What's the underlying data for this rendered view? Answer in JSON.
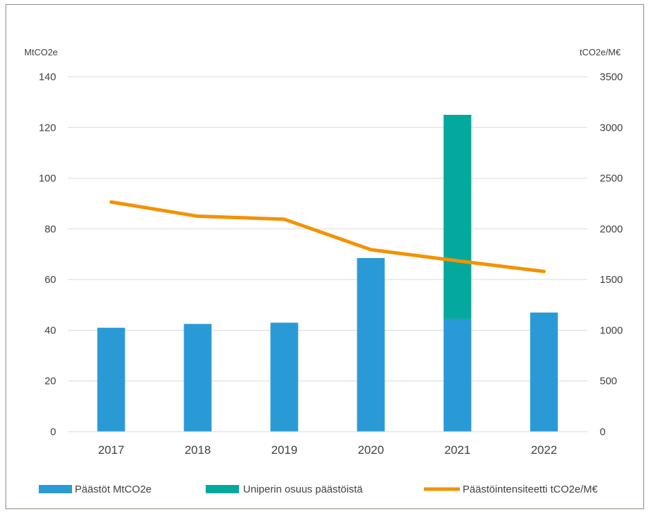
{
  "chart_data": {
    "type": "bar",
    "categories": [
      "2017",
      "2018",
      "2019",
      "2020",
      "2021",
      "2022"
    ],
    "left_axis": {
      "unit_label": "MtCO2e",
      "ylim": [
        0,
        140
      ],
      "ticks": [
        0,
        20,
        40,
        60,
        80,
        100,
        120,
        140
      ]
    },
    "right_axis": {
      "unit_label": "tCO2e/M€",
      "ylim": [
        0,
        3500
      ],
      "ticks": [
        0,
        500,
        1000,
        1500,
        2000,
        2500,
        3000,
        3500
      ]
    },
    "series": [
      {
        "name": "Päästöt MtCO2e",
        "type": "bar",
        "axis": "left",
        "stack": "a",
        "color": "#2a9ad6",
        "values": [
          41,
          42.5,
          43,
          68.5,
          44.5,
          47
        ]
      },
      {
        "name": "Uniperin osuus päästöistä",
        "type": "bar",
        "axis": "left",
        "stack": "a",
        "color": "#05a89d",
        "values": [
          0,
          0,
          0,
          0,
          80.5,
          0
        ]
      },
      {
        "name": "Päästöintensiteetti tCO2e/M€",
        "type": "line",
        "axis": "right",
        "color": "#f39200",
        "values": [
          2265,
          2125,
          2095,
          1795,
          1685,
          1580
        ]
      }
    ],
    "grid": true,
    "legend_position": "bottom"
  }
}
